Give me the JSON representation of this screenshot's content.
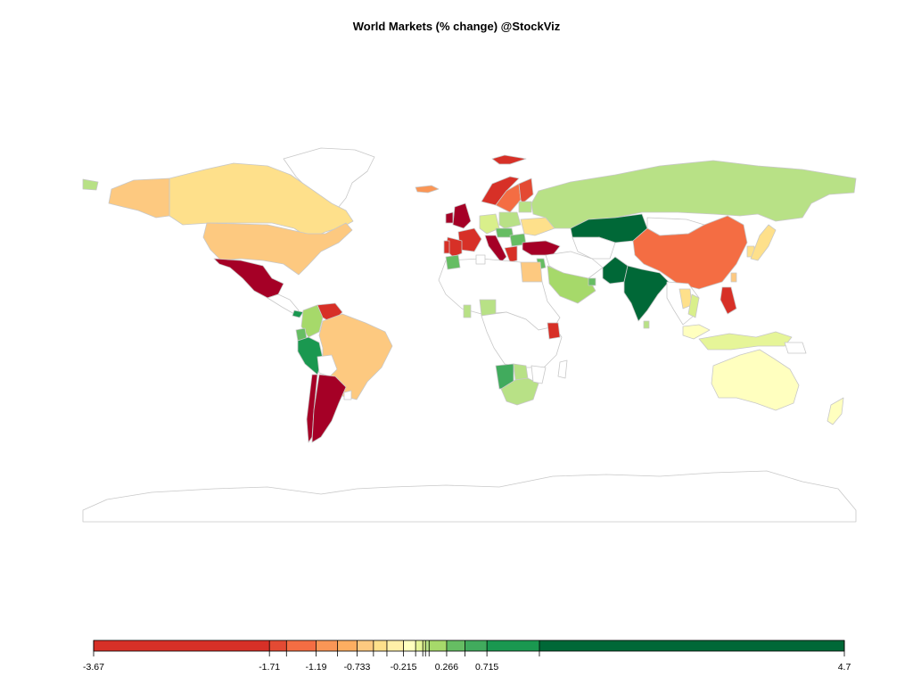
{
  "title": "World Markets (% change) @StockViz",
  "legend": {
    "min": -3.67,
    "max": 4.7,
    "labels": [
      {
        "value": -3.67,
        "text": "-3.67"
      },
      {
        "value": -1.71,
        "text": "-1.71"
      },
      {
        "value": -1.19,
        "text": "-1.19"
      },
      {
        "value": -0.733,
        "text": "-0.733"
      },
      {
        "value": -0.215,
        "text": "-0.215"
      },
      {
        "value": 0.266,
        "text": "0.266"
      },
      {
        "value": 0.715,
        "text": "0.715"
      },
      {
        "value": 4.7,
        "text": "4.7"
      }
    ],
    "breaks": [
      -3.67,
      -1.71,
      -1.52,
      -1.19,
      -0.95,
      -0.733,
      -0.55,
      -0.4,
      -0.215,
      -0.08,
      0.0,
      0.03,
      0.07,
      0.266,
      0.47,
      0.715,
      1.3,
      4.7
    ],
    "colors": [
      "#a50026",
      "#d73027",
      "#e34a33",
      "#f46d43",
      "#fa9656",
      "#fdae61",
      "#fdc980",
      "#fee08b",
      "#fff0a8",
      "#ffffbf",
      "#e6f598",
      "#d9ef8b",
      "#b8e186",
      "#a6d96a",
      "#66bd63",
      "#41ab5d",
      "#1a9850",
      "#006837"
    ]
  },
  "colors": {
    "no_data_fill": "#ffffff",
    "border": "#bfbfbf"
  }
}
